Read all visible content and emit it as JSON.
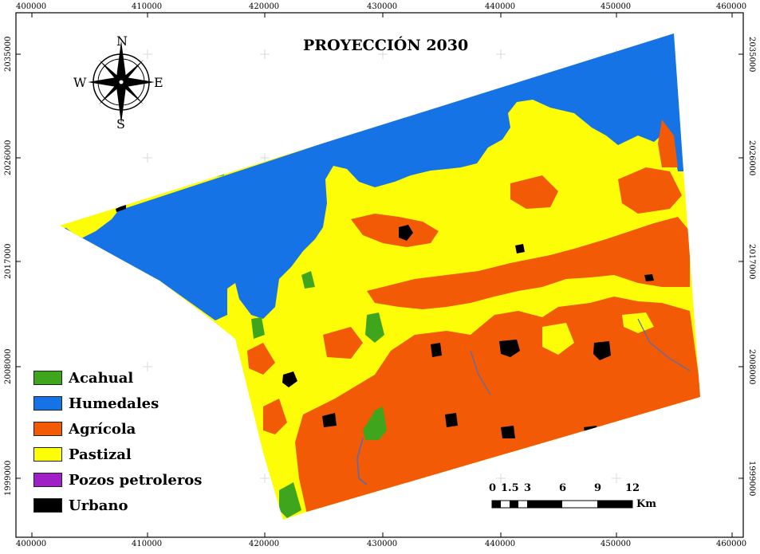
{
  "map": {
    "title": "PROYECCIÓN 2030",
    "x_ticks": [
      "400000",
      "410000",
      "420000",
      "430000",
      "440000",
      "450000",
      "460000"
    ],
    "y_ticks": [
      "2035000",
      "2026000",
      "2017000",
      "2008000",
      "1999000"
    ]
  },
  "compass": {
    "n": "N",
    "s": "S",
    "e": "E",
    "w": "W"
  },
  "legend": [
    {
      "label": "Acahual",
      "color": "#3fa51c"
    },
    {
      "label": "Humedales",
      "color": "#1673e6"
    },
    {
      "label": "Agrícola",
      "color": "#f25a05"
    },
    {
      "label": "Pastizal",
      "color": "#fdfd08"
    },
    {
      "label": "Pozos petroleros",
      "color": "#a020c8"
    },
    {
      "label": "Urbano",
      "color": "#000000"
    }
  ],
  "scalebar": {
    "labels": [
      "0",
      "1.5",
      "3",
      "6",
      "9",
      "12"
    ],
    "unit": "Km"
  }
}
